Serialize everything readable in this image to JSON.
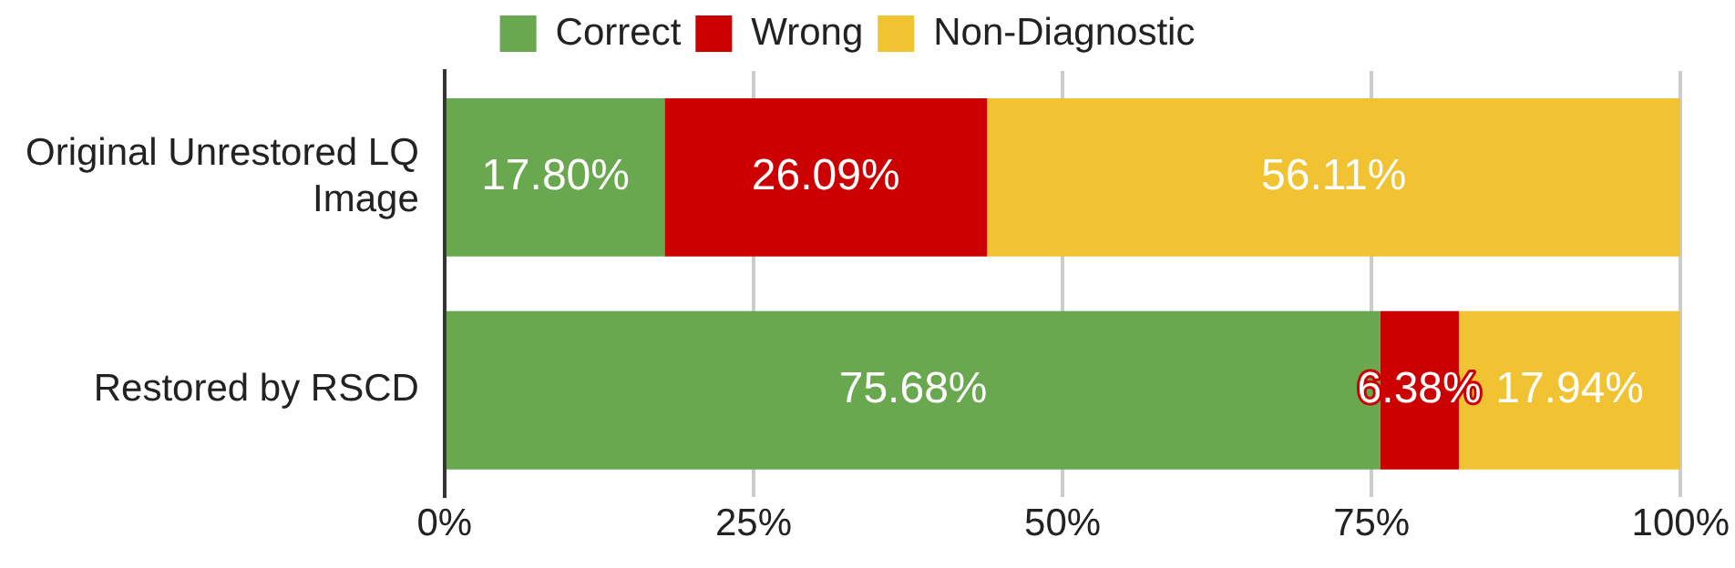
{
  "chart_data": {
    "type": "bar",
    "orientation": "horizontal",
    "stacked": true,
    "categories": [
      "Original Unrestored LQ Image",
      "Restored by RSCD"
    ],
    "series": [
      {
        "name": "Correct",
        "color": "#6aa84f",
        "values": [
          17.8,
          75.68
        ],
        "value_labels": [
          "17.80%",
          "75.68%"
        ]
      },
      {
        "name": "Wrong",
        "color": "#cc0000",
        "values": [
          26.09,
          6.38
        ],
        "value_labels": [
          "26.09%",
          "6.38%"
        ]
      },
      {
        "name": "Non-Diagnostic",
        "color": "#f1c232",
        "values": [
          56.11,
          17.94
        ],
        "value_labels": [
          "56.11%",
          "17.94%"
        ]
      }
    ],
    "xlim": [
      0,
      100
    ],
    "xticks": [
      {
        "value": 0,
        "label": "0%"
      },
      {
        "value": 25,
        "label": "25%"
      },
      {
        "value": 50,
        "label": "50%"
      },
      {
        "value": 75,
        "label": "75%"
      },
      {
        "value": 100,
        "label": "100%"
      }
    ],
    "grid": "x",
    "legend": "top"
  }
}
